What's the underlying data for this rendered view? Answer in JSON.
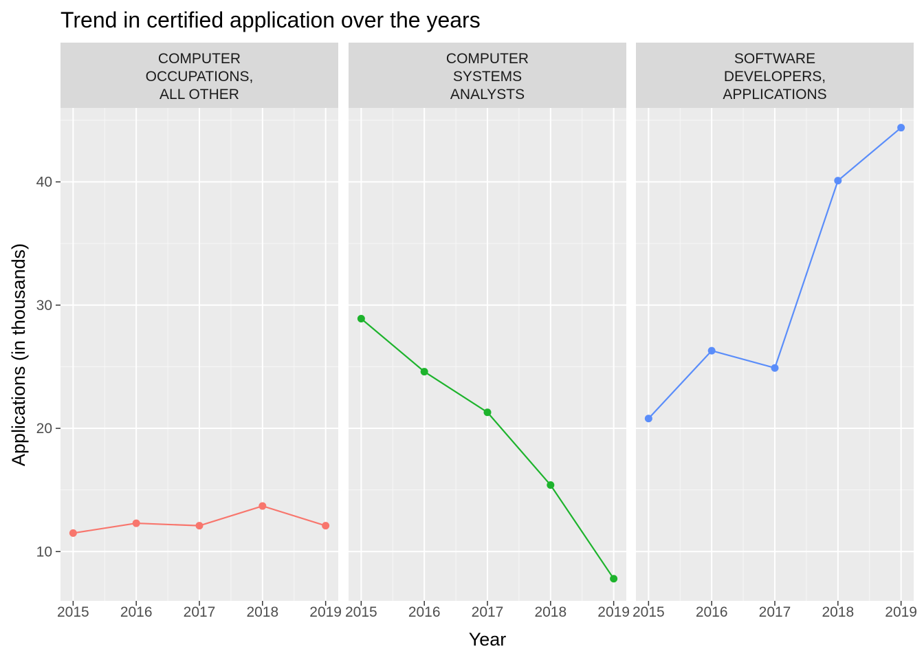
{
  "chart_data": {
    "type": "line",
    "title": "Trend in certified application over the years",
    "xlabel": "Year",
    "ylabel": "Applications (in thousands)",
    "x": [
      2015,
      2016,
      2017,
      2018,
      2019
    ],
    "x_tick_labels": [
      "2015",
      "2016",
      "2017",
      "2018",
      "2019"
    ],
    "y_ticks": [
      10,
      20,
      30,
      40
    ],
    "y_tick_labels": [
      "10",
      "20",
      "30",
      "40"
    ],
    "ylim": [
      6,
      46
    ],
    "grid": true,
    "legend": "none",
    "panels": [
      {
        "strip_lines": [
          "COMPUTER",
          "OCCUPATIONS,",
          "ALL OTHER"
        ],
        "color": "#F8766D",
        "values": [
          11.5,
          12.3,
          12.1,
          13.7,
          12.1
        ]
      },
      {
        "strip_lines": [
          "COMPUTER",
          "SYSTEMS",
          "ANALYSTS"
        ],
        "color": "#1DB32C",
        "values": [
          28.9,
          24.6,
          21.3,
          15.4,
          7.8
        ]
      },
      {
        "strip_lines": [
          "SOFTWARE",
          "DEVELOPERS,",
          "APPLICATIONS"
        ],
        "color": "#5A8DFA",
        "values": [
          20.8,
          26.3,
          24.9,
          40.1,
          44.4
        ]
      }
    ]
  }
}
